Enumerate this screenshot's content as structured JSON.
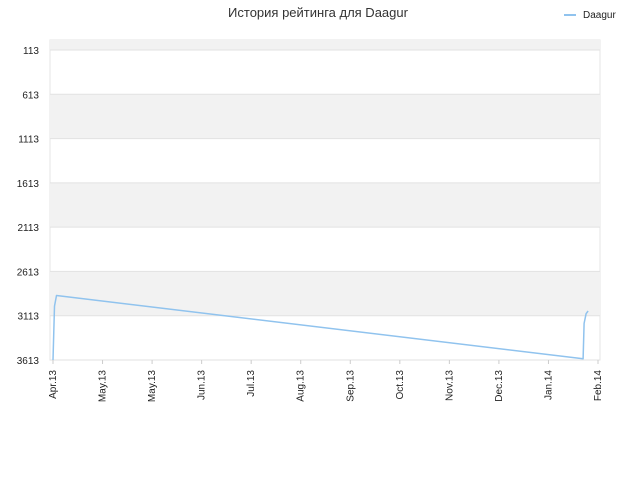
{
  "chart_data": {
    "type": "line",
    "title": "История рейтинга для Daagur",
    "xlabel": "",
    "ylabel": "",
    "y_reversed": true,
    "ylim": [
      113,
      3613
    ],
    "y_ticks": [
      113,
      613,
      1113,
      1613,
      2113,
      2613,
      3113,
      3613
    ],
    "x_tick_labels": [
      "Apr.13",
      "May.13",
      "May.13",
      "Jun.13",
      "Jul.13",
      "Aug.13",
      "Sep.13",
      "Oct.13",
      "Nov.13",
      "Dec.13",
      "Jan.14",
      "Feb.14"
    ],
    "grid": true,
    "legend_position": "top-right",
    "series": [
      {
        "name": "Daagur",
        "color": "#90c3ee",
        "x": [
          0,
          0.03,
          0.07,
          10.7,
          10.72,
          10.76,
          10.8
        ],
        "y": [
          3613,
          3005,
          2885,
          3600,
          3200,
          3090,
          3060
        ]
      }
    ]
  }
}
